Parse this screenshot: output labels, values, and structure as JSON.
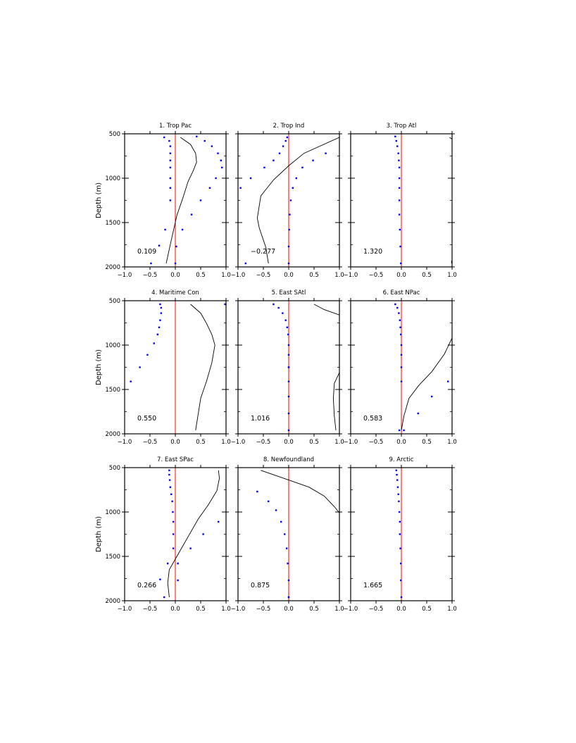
{
  "chart_data": {
    "type": "line",
    "ylabel": "Depth (m)",
    "xlim": [
      -1.0,
      1.0
    ],
    "ylim": [
      2000,
      500
    ],
    "y_inverted": true,
    "xticks": [
      "−1.0",
      "−0.5",
      "0.0",
      "0.5",
      "1.0"
    ],
    "yticks": [
      "500",
      "1000",
      "1500",
      "2000"
    ],
    "zero_line_color": "#ff0000",
    "line_color": "#000000",
    "dot_color": "#0000ff",
    "panels": [
      {
        "title": "1. Trop Pac",
        "value": "0.109",
        "line": {
          "x": [
            0.1,
            0.3,
            0.4,
            0.42,
            0.35,
            0.25,
            0.15,
            0.03,
            -0.08,
            -0.18
          ],
          "y": [
            540,
            620,
            720,
            820,
            920,
            1040,
            1220,
            1420,
            1700,
            1960
          ]
        },
        "dots": {
          "x": [
            -0.22,
            -0.12,
            -0.1,
            -0.1,
            -0.1,
            -0.1,
            -0.1,
            -0.1,
            -0.1,
            -0.2,
            -0.32,
            -0.48,
            0.42,
            0.58,
            0.72,
            0.84,
            0.9,
            0.92,
            0.8,
            0.68,
            0.5,
            0.32,
            0.14,
            0.02,
            0.0
          ],
          "y": [
            540,
            580,
            640,
            720,
            800,
            880,
            1000,
            1110,
            1250,
            1580,
            1760,
            1960,
            530,
            580,
            640,
            720,
            800,
            880,
            1000,
            1110,
            1250,
            1410,
            1580,
            1770,
            1960
          ]
        }
      },
      {
        "title": "2. Trop Ind",
        "value": "−0.277",
        "line": {
          "x": [
            1.0,
            0.3,
            0.0,
            -0.3,
            -0.55,
            -0.62,
            -0.58,
            -0.45,
            -0.4
          ],
          "y": [
            540,
            720,
            860,
            1020,
            1200,
            1450,
            1560,
            1780,
            1960
          ]
        },
        "dots": {
          "x": [
            -0.03,
            -0.06,
            -0.11,
            -0.18,
            -0.3,
            -0.48,
            -0.75,
            -0.95,
            -0.85,
            0.73,
            0.48,
            0.27,
            0.15,
            0.08,
            0.04,
            0.02,
            0.01,
            0.0,
            0.0
          ],
          "y": [
            540,
            580,
            640,
            720,
            800,
            880,
            1000,
            1110,
            1960,
            720,
            800,
            880,
            1000,
            1110,
            1250,
            1410,
            1580,
            1770,
            1960
          ]
        }
      },
      {
        "title": "3. Trop Atl",
        "value": "1.320",
        "line": {
          "x": [
            0.95,
            1.0
          ],
          "y": [
            540,
            560
          ],
          "x2": [
            0.99,
            0.99
          ],
          "y2": [
            1930,
            1960
          ]
        },
        "dots": {
          "x": [
            -0.12,
            -0.1,
            -0.08,
            -0.06,
            -0.05,
            -0.04,
            -0.04,
            -0.04,
            -0.04,
            -0.04,
            -0.03,
            -0.02,
            -0.01
          ],
          "y": [
            530,
            580,
            640,
            720,
            800,
            880,
            1000,
            1110,
            1250,
            1410,
            1580,
            1770,
            1960
          ]
        }
      },
      {
        "title": "4. Maritime Con",
        "value": "0.550",
        "line": {
          "x": [
            0.3,
            0.5,
            0.62,
            0.72,
            0.78,
            0.72,
            0.62,
            0.5,
            0.4
          ],
          "y": [
            540,
            640,
            760,
            880,
            1000,
            1200,
            1400,
            1600,
            1960
          ]
        },
        "dots": {
          "x": [
            -0.3,
            -0.28,
            -0.28,
            -0.3,
            -0.32,
            -0.35,
            -0.42,
            -0.55,
            -0.7,
            -0.88,
            0.98
          ],
          "y": [
            540,
            580,
            640,
            720,
            800,
            880,
            980,
            1110,
            1250,
            1410,
            540
          ]
        }
      },
      {
        "title": "5. East SAtl",
        "value": "1.016",
        "line": {
          "x": [
            0.5,
            0.7,
            1.0
          ],
          "y": [
            540,
            600,
            660
          ],
          "x2": [
            1.0,
            0.9,
            0.88,
            0.9,
            0.93
          ],
          "y2": [
            1310,
            1430,
            1600,
            1800,
            1960
          ]
        },
        "dots": {
          "x": [
            -0.3,
            -0.2,
            -0.12,
            -0.06,
            -0.03,
            -0.01,
            0.0,
            0.0,
            0.0,
            0.0,
            0.0,
            0.0,
            0.0,
            0.0
          ],
          "y": [
            540,
            580,
            640,
            720,
            800,
            880,
            1000,
            1110,
            1250,
            1410,
            1580,
            1770,
            1960,
            1250
          ]
        }
      },
      {
        "title": "6. East NPac",
        "value": "0.583",
        "line": {
          "x": [
            1.0,
            0.85,
            0.6,
            0.35,
            0.15,
            0.05,
            0.0
          ],
          "y": [
            920,
            1100,
            1300,
            1450,
            1600,
            1800,
            1960
          ]
        },
        "dots": {
          "x": [
            -0.12,
            -0.08,
            -0.05,
            -0.03,
            -0.02,
            -0.01,
            0.0,
            0.0,
            0.0,
            0.0,
            0.92,
            0.6,
            0.33,
            0.05,
            -0.04
          ],
          "y": [
            540,
            580,
            640,
            720,
            800,
            880,
            1000,
            1110,
            1250,
            1410,
            1410,
            1580,
            1770,
            1960,
            1960
          ]
        }
      },
      {
        "title": "7. East SPac",
        "value": "0.266",
        "line": {
          "x": [
            0.85,
            0.87,
            0.82,
            0.65,
            0.45,
            0.25,
            0.05,
            -0.12,
            -0.15,
            -0.12
          ],
          "y": [
            530,
            620,
            760,
            920,
            1080,
            1280,
            1480,
            1650,
            1800,
            1960
          ]
        },
        "dots": {
          "x": [
            -0.12,
            -0.12,
            -0.11,
            -0.1,
            -0.08,
            -0.06,
            -0.05,
            -0.04,
            -0.04,
            -0.04,
            -0.15,
            -0.3,
            -0.22,
            0.05,
            0.85,
            0.55,
            0.3,
            0.05
          ],
          "y": [
            530,
            580,
            640,
            720,
            800,
            880,
            1000,
            1110,
            1250,
            1410,
            1580,
            1760,
            1960,
            1580,
            1110,
            1250,
            1410,
            1770
          ]
        }
      },
      {
        "title": "8. Newfoundland",
        "value": "0.875",
        "line": {
          "x": [
            -0.55,
            0.0,
            0.4,
            0.7,
            0.9,
            1.0
          ],
          "y": [
            530,
            640,
            720,
            820,
            940,
            1010
          ]
        },
        "dots": {
          "x": [
            -0.62,
            -0.4,
            -0.25,
            -0.15,
            -0.08,
            -0.04,
            -0.02,
            0.0,
            0.0,
            0.0
          ],
          "y": [
            770,
            880,
            980,
            1110,
            1250,
            1410,
            1580,
            1770,
            1960,
            1960
          ]
        }
      },
      {
        "title": "9. Arctic",
        "value": "1.665",
        "line": {
          "x": [],
          "y": []
        },
        "dots": {
          "x": [
            -0.1,
            -0.09,
            -0.08,
            -0.07,
            -0.06,
            -0.05,
            -0.04,
            -0.03,
            -0.03,
            -0.02,
            -0.01,
            -0.01,
            0.0
          ],
          "y": [
            530,
            580,
            640,
            720,
            800,
            880,
            1000,
            1110,
            1250,
            1410,
            1580,
            1770,
            1960
          ]
        }
      }
    ]
  }
}
